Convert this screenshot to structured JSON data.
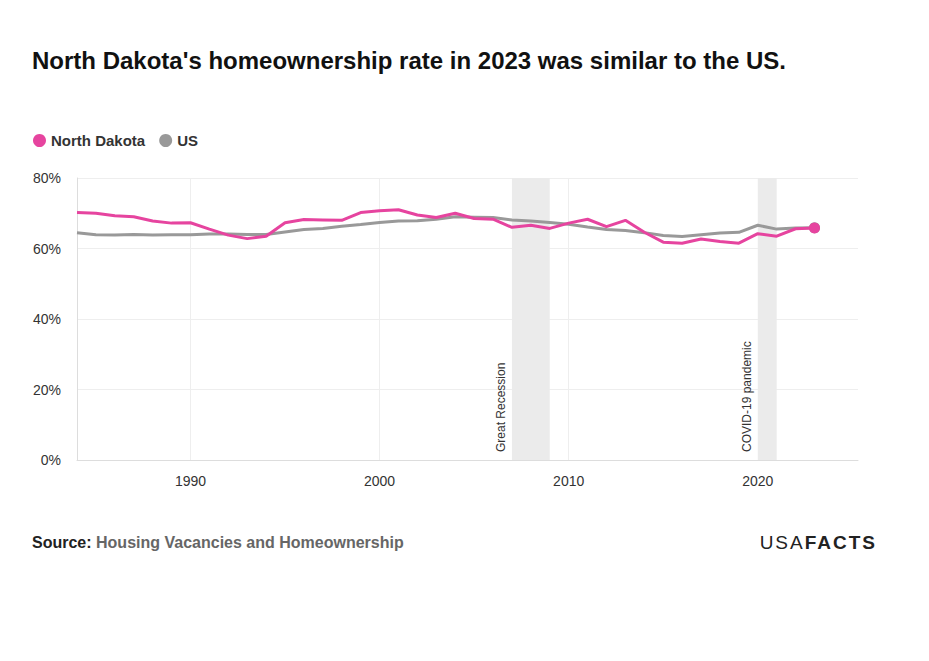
{
  "chart_data": {
    "type": "line",
    "title": "North Dakota's homeownership rate in 2023 was similar to the US.",
    "x": [
      1984,
      1985,
      1986,
      1987,
      1988,
      1989,
      1990,
      1991,
      1992,
      1993,
      1994,
      1995,
      1996,
      1997,
      1998,
      1999,
      2000,
      2001,
      2002,
      2003,
      2004,
      2005,
      2006,
      2007,
      2008,
      2009,
      2010,
      2011,
      2012,
      2013,
      2014,
      2015,
      2016,
      2017,
      2018,
      2019,
      2020,
      2021,
      2022,
      2023
    ],
    "series": [
      {
        "name": "North Dakota",
        "color": "#e6449f",
        "marker": "last",
        "values": [
          70.2,
          70.0,
          69.3,
          69.0,
          67.8,
          67.2,
          67.3,
          65.5,
          63.8,
          62.8,
          63.5,
          67.3,
          68.2,
          68.1,
          68.0,
          70.2,
          70.7,
          71.0,
          69.5,
          68.8,
          70.0,
          68.5,
          68.3,
          66.0,
          66.6,
          65.7,
          67.2,
          68.3,
          66.2,
          68.0,
          64.6,
          61.8,
          61.5,
          62.7,
          62.0,
          61.5,
          64.2,
          63.5,
          65.6,
          65.8
        ]
      },
      {
        "name": "US",
        "color": "#999999",
        "marker": "last",
        "values": [
          64.5,
          63.9,
          63.8,
          64.0,
          63.8,
          63.9,
          63.9,
          64.1,
          64.1,
          64.0,
          64.0,
          64.7,
          65.4,
          65.7,
          66.3,
          66.8,
          67.4,
          67.8,
          67.9,
          68.3,
          69.0,
          68.9,
          68.8,
          68.1,
          67.8,
          67.4,
          66.9,
          66.1,
          65.4,
          65.1,
          64.5,
          63.7,
          63.4,
          63.9,
          64.4,
          64.6,
          66.6,
          65.5,
          65.8,
          65.9
        ]
      }
    ],
    "xlim": [
      1984,
      2025.3
    ],
    "xticks": [
      1990,
      2000,
      2010,
      2020
    ],
    "ylim": [
      0,
      80
    ],
    "yticks": [
      {
        "value": 0,
        "label": "0%"
      },
      {
        "value": 20,
        "label": "20%"
      },
      {
        "value": 40,
        "label": "40%"
      },
      {
        "value": 60,
        "label": "60%"
      },
      {
        "value": 80,
        "label": "80%"
      }
    ],
    "grid": true,
    "legend": "top-left",
    "annotations": [
      {
        "label": "Great Recession",
        "start": 2007,
        "end": 2009
      },
      {
        "label": "COVID-19 pandemic",
        "start": 2020,
        "end": 2021
      }
    ],
    "source": {
      "label": "Source:",
      "text": "Housing Vacancies and Homeownership"
    },
    "logo": [
      "USA",
      "FACTS"
    ]
  }
}
